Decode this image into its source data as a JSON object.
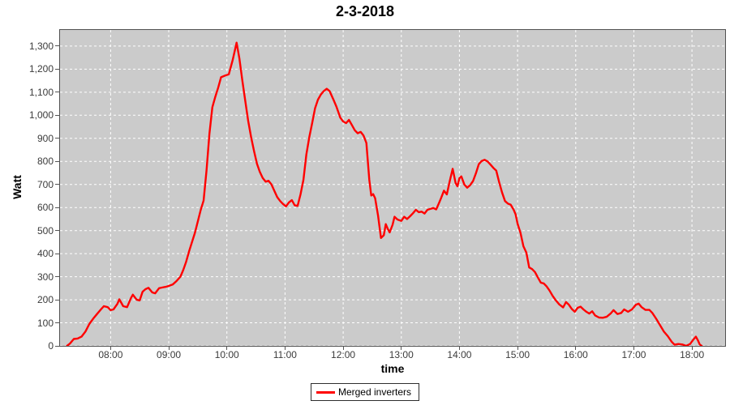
{
  "title": "2-3-2018",
  "chart_data": {
    "type": "line",
    "title": "2-3-2018",
    "xlabel": "time",
    "ylabel": "Watt",
    "grid": true,
    "legend_position": "bottom",
    "plot_background": "#cbcbcb",
    "grid_color": "#ffffff",
    "x_tick_labels": [
      "08:00",
      "09:00",
      "10:00",
      "11:00",
      "12:00",
      "13:00",
      "14:00",
      "15:00",
      "16:00",
      "17:00",
      "18:00"
    ],
    "y_tick_labels": [
      "0",
      "100",
      "200",
      "300",
      "400",
      "500",
      "600",
      "700",
      "800",
      "900",
      "1,000",
      "1,100",
      "1,200",
      "1,300"
    ],
    "xlim_hours": [
      7.13,
      18.57
    ],
    "ylim": [
      0,
      1370
    ],
    "series": [
      {
        "name": "Merged inverters",
        "color": "#ff0000",
        "points": [
          [
            "07:15",
            0
          ],
          [
            "07:18",
            10
          ],
          [
            "07:22",
            30
          ],
          [
            "07:26",
            32
          ],
          [
            "07:30",
            40
          ],
          [
            "07:34",
            62
          ],
          [
            "07:38",
            95
          ],
          [
            "07:42",
            118
          ],
          [
            "07:46",
            138
          ],
          [
            "07:50",
            158
          ],
          [
            "07:53",
            172
          ],
          [
            "07:57",
            168
          ],
          [
            "08:00",
            155
          ],
          [
            "08:03",
            158
          ],
          [
            "08:07",
            182
          ],
          [
            "08:09",
            202
          ],
          [
            "08:13",
            172
          ],
          [
            "08:17",
            168
          ],
          [
            "08:21",
            207
          ],
          [
            "08:23",
            222
          ],
          [
            "08:27",
            200
          ],
          [
            "08:30",
            197
          ],
          [
            "08:33",
            235
          ],
          [
            "08:36",
            246
          ],
          [
            "08:39",
            252
          ],
          [
            "08:43",
            232
          ],
          [
            "08:46",
            228
          ],
          [
            "08:50",
            250
          ],
          [
            "08:53",
            253
          ],
          [
            "08:57",
            256
          ],
          [
            "09:00",
            260
          ],
          [
            "09:04",
            266
          ],
          [
            "09:08",
            281
          ],
          [
            "09:12",
            300
          ],
          [
            "09:15",
            330
          ],
          [
            "09:18",
            365
          ],
          [
            "09:21",
            410
          ],
          [
            "09:24",
            450
          ],
          [
            "09:27",
            490
          ],
          [
            "09:30",
            540
          ],
          [
            "09:33",
            590
          ],
          [
            "09:36",
            630
          ],
          [
            "09:39",
            760
          ],
          [
            "09:42",
            920
          ],
          [
            "09:45",
            1035
          ],
          [
            "09:48",
            1080
          ],
          [
            "09:51",
            1120
          ],
          [
            "09:54",
            1165
          ],
          [
            "09:58",
            1172
          ],
          [
            "10:02",
            1178
          ],
          [
            "10:06",
            1240
          ],
          [
            "10:10",
            1315
          ],
          [
            "10:13",
            1245
          ],
          [
            "10:16",
            1150
          ],
          [
            "10:19",
            1062
          ],
          [
            "10:22",
            975
          ],
          [
            "10:25",
            905
          ],
          [
            "10:28",
            845
          ],
          [
            "10:31",
            790
          ],
          [
            "10:34",
            755
          ],
          [
            "10:37",
            728
          ],
          [
            "10:40",
            712
          ],
          [
            "10:43",
            716
          ],
          [
            "10:46",
            700
          ],
          [
            "10:49",
            672
          ],
          [
            "10:52",
            645
          ],
          [
            "10:55",
            628
          ],
          [
            "10:58",
            615
          ],
          [
            "11:01",
            605
          ],
          [
            "11:04",
            622
          ],
          [
            "11:07",
            632
          ],
          [
            "11:10",
            610
          ],
          [
            "11:13",
            607
          ],
          [
            "11:16",
            657
          ],
          [
            "11:19",
            720
          ],
          [
            "11:22",
            830
          ],
          [
            "11:25",
            905
          ],
          [
            "11:28",
            965
          ],
          [
            "11:31",
            1030
          ],
          [
            "11:34",
            1068
          ],
          [
            "11:37",
            1090
          ],
          [
            "11:40",
            1105
          ],
          [
            "11:43",
            1115
          ],
          [
            "11:46",
            1105
          ],
          [
            "11:50",
            1068
          ],
          [
            "11:53",
            1038
          ],
          [
            "11:57",
            990
          ],
          [
            "12:00",
            973
          ],
          [
            "12:03",
            966
          ],
          [
            "12:06",
            980
          ],
          [
            "12:09",
            958
          ],
          [
            "12:12",
            935
          ],
          [
            "12:15",
            922
          ],
          [
            "12:18",
            928
          ],
          [
            "12:21",
            912
          ],
          [
            "12:24",
            880
          ],
          [
            "12:27",
            720
          ],
          [
            "12:29",
            652
          ],
          [
            "12:31",
            658
          ],
          [
            "12:33",
            640
          ],
          [
            "12:36",
            565
          ],
          [
            "12:39",
            468
          ],
          [
            "12:42",
            480
          ],
          [
            "12:44",
            528
          ],
          [
            "12:46",
            508
          ],
          [
            "12:48",
            492
          ],
          [
            "12:51",
            525
          ],
          [
            "12:53",
            560
          ],
          [
            "12:56",
            548
          ],
          [
            "13:00",
            542
          ],
          [
            "13:03",
            560
          ],
          [
            "13:06",
            550
          ],
          [
            "13:09",
            562
          ],
          [
            "13:12",
            575
          ],
          [
            "13:15",
            590
          ],
          [
            "13:18",
            580
          ],
          [
            "13:21",
            582
          ],
          [
            "13:24",
            574
          ],
          [
            "13:27",
            590
          ],
          [
            "13:30",
            594
          ],
          [
            "13:33",
            598
          ],
          [
            "13:36",
            592
          ],
          [
            "13:39",
            620
          ],
          [
            "13:41",
            640
          ],
          [
            "13:44",
            673
          ],
          [
            "13:47",
            657
          ],
          [
            "13:50",
            715
          ],
          [
            "13:53",
            768
          ],
          [
            "13:56",
            706
          ],
          [
            "13:58",
            692
          ],
          [
            "14:00",
            727
          ],
          [
            "14:02",
            735
          ],
          [
            "14:05",
            700
          ],
          [
            "14:08",
            686
          ],
          [
            "14:11",
            697
          ],
          [
            "14:14",
            715
          ],
          [
            "14:17",
            748
          ],
          [
            "14:20",
            788
          ],
          [
            "14:23",
            802
          ],
          [
            "14:26",
            807
          ],
          [
            "14:29",
            800
          ],
          [
            "14:32",
            786
          ],
          [
            "14:35",
            772
          ],
          [
            "14:38",
            760
          ],
          [
            "14:41",
            710
          ],
          [
            "14:44",
            665
          ],
          [
            "14:47",
            628
          ],
          [
            "14:50",
            617
          ],
          [
            "14:53",
            612
          ],
          [
            "14:56",
            590
          ],
          [
            "14:58",
            570
          ],
          [
            "15:00",
            530
          ],
          [
            "15:03",
            490
          ],
          [
            "15:06",
            432
          ],
          [
            "15:09",
            405
          ],
          [
            "15:12",
            340
          ],
          [
            "15:15",
            333
          ],
          [
            "15:18",
            320
          ],
          [
            "15:21",
            296
          ],
          [
            "15:24",
            274
          ],
          [
            "15:27",
            271
          ],
          [
            "15:30",
            258
          ],
          [
            "15:33",
            240
          ],
          [
            "15:36",
            218
          ],
          [
            "15:39",
            200
          ],
          [
            "15:43",
            180
          ],
          [
            "15:47",
            167
          ],
          [
            "15:50",
            190
          ],
          [
            "15:53",
            178
          ],
          [
            "15:56",
            160
          ],
          [
            "15:59",
            148
          ],
          [
            "16:02",
            165
          ],
          [
            "16:05",
            170
          ],
          [
            "16:08",
            158
          ],
          [
            "16:11",
            148
          ],
          [
            "16:14",
            140
          ],
          [
            "16:17",
            150
          ],
          [
            "16:20",
            132
          ],
          [
            "16:24",
            123
          ],
          [
            "16:28",
            122
          ],
          [
            "16:32",
            126
          ],
          [
            "16:36",
            140
          ],
          [
            "16:39",
            155
          ],
          [
            "16:43",
            138
          ],
          [
            "16:47",
            143
          ],
          [
            "16:50",
            158
          ],
          [
            "16:54",
            148
          ],
          [
            "16:58",
            158
          ],
          [
            "17:02",
            178
          ],
          [
            "17:05",
            183
          ],
          [
            "17:08",
            168
          ],
          [
            "17:12",
            156
          ],
          [
            "17:16",
            156
          ],
          [
            "17:19",
            143
          ],
          [
            "17:23",
            118
          ],
          [
            "17:27",
            90
          ],
          [
            "17:31",
            62
          ],
          [
            "17:35",
            42
          ],
          [
            "17:39",
            18
          ],
          [
            "17:42",
            5
          ],
          [
            "17:46",
            8
          ],
          [
            "17:50",
            6
          ],
          [
            "17:54",
            0
          ],
          [
            "17:58",
            8
          ],
          [
            "18:01",
            25
          ],
          [
            "18:04",
            40
          ],
          [
            "18:06",
            25
          ],
          [
            "18:08",
            6
          ],
          [
            "18:10",
            0
          ]
        ]
      }
    ]
  },
  "legend": {
    "label": "Merged inverters"
  }
}
